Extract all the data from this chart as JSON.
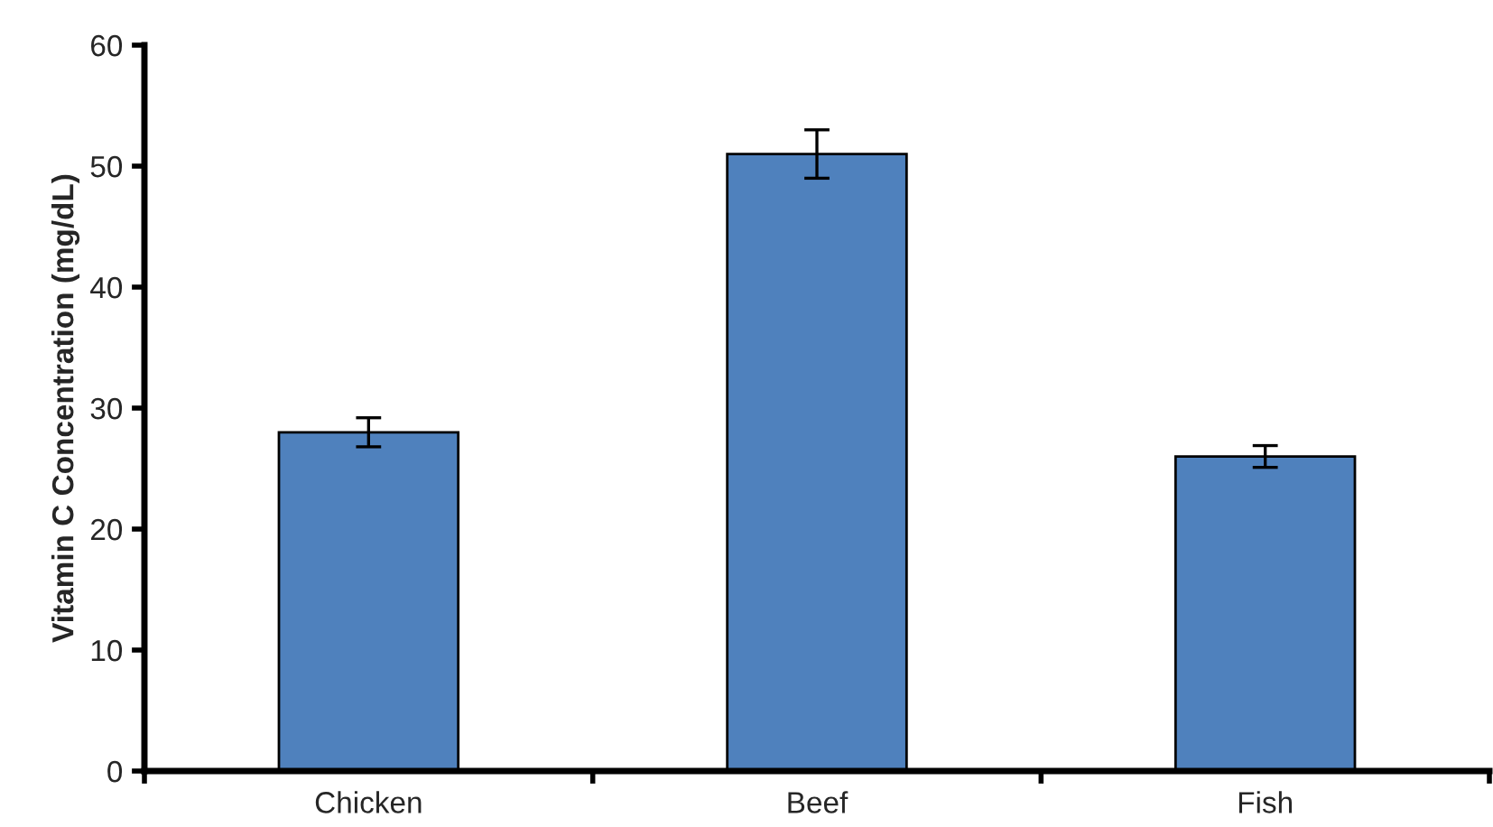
{
  "chart_data": {
    "type": "bar",
    "ylabel": "Vitamin C Concentration (mg/dL)",
    "categories": [
      "Chicken",
      "Beef",
      "Fish"
    ],
    "values": [
      28,
      51,
      26
    ],
    "errors": [
      1.2,
      2,
      0.9
    ],
    "color": "#4f81bd",
    "ylim": [
      0,
      60
    ],
    "yticks": [
      0,
      10,
      20,
      30,
      40,
      50,
      60
    ],
    "grid": false,
    "legend": false
  }
}
